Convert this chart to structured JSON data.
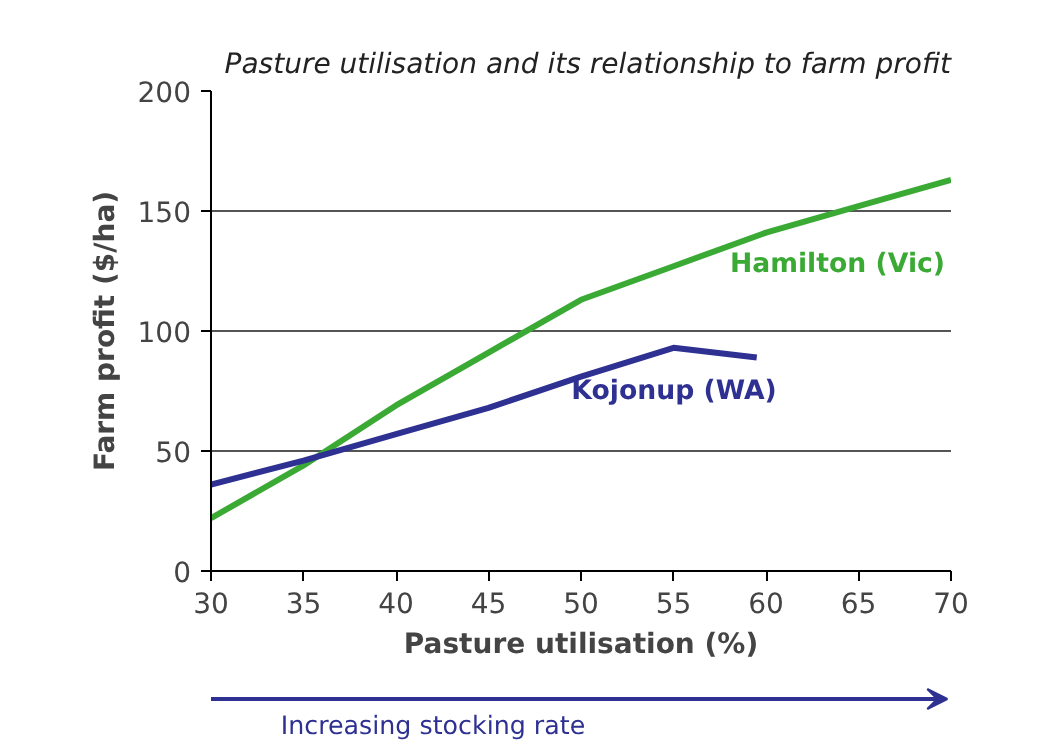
{
  "chart_data": {
    "type": "line",
    "title": "Pasture utilisation and its relationship to farm profit",
    "xlabel": "Pasture utilisation (%)",
    "ylabel": "Farm profit ($/ha)",
    "xlim": [
      30,
      70
    ],
    "xticks": [
      30,
      35,
      40,
      45,
      50,
      55,
      60,
      65,
      70
    ],
    "ylim": [
      0,
      200
    ],
    "yticks": [
      0,
      50,
      100,
      150,
      200
    ],
    "grid": "y",
    "series": [
      {
        "name": "Hamilton (Vic)",
        "color": "#3aaa35",
        "x": [
          30,
          35,
          40,
          45,
          50,
          55,
          60,
          65,
          70
        ],
        "values": [
          22,
          44,
          69,
          91,
          113,
          127,
          141,
          152,
          163
        ]
      },
      {
        "name": "Kojonup (WA)",
        "color": "#2e3192",
        "x": [
          30,
          35,
          40,
          45,
          50,
          55,
          59.5
        ],
        "values": [
          36,
          46,
          57,
          68,
          81,
          93,
          89
        ]
      }
    ],
    "annotations": [
      "Increasing stocking rate"
    ]
  }
}
